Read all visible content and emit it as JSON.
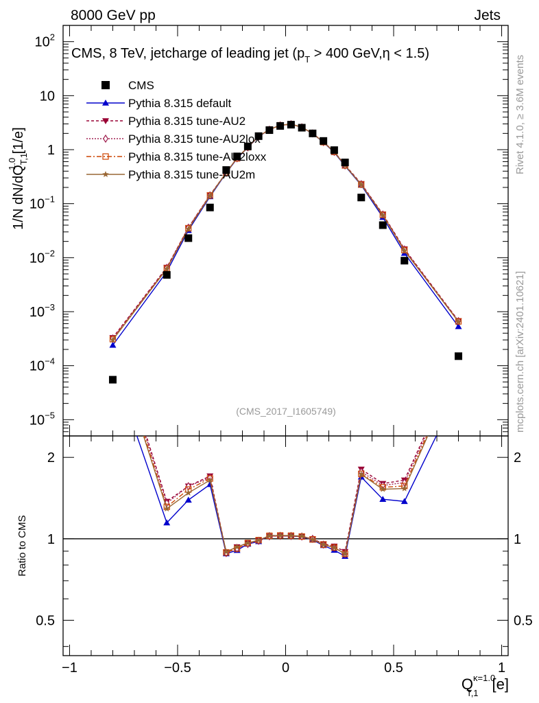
{
  "header": {
    "left": "8000 GeV pp",
    "right": "Jets"
  },
  "side_labels": {
    "rivet": "Rivet 4.1.0, ≥ 3.6M events",
    "mcplots": "mcplots.cern.ch [arXiv:2401.10621]"
  },
  "chart_data": {
    "type": "line",
    "title": "CMS, 8 TeV, jetcharge of leading jet (p_T > 400 GeV, η < 1.5)",
    "title_parts": {
      "a": "CMS, 8 TeV, jetcharge of leading jet (p",
      "sub": "T",
      "b": " > 400 GeV,η < 1.5)"
    },
    "analysis_id": "(CMS_2017_I1605749)",
    "xlabel": "Q_T,1^κ=1.0 [e]",
    "xlabel_parts": {
      "main": "Q",
      "sup": "κ=1.0",
      "sub": "T,1",
      "unit": "[e]"
    },
    "ylabel": "1/N dN/dQ_T,1^1.0 [1/e]",
    "ylabel_parts": {
      "a": "1/N dN/dQ",
      "sup": "1.0",
      "sub": "T,1",
      "b": " [1/e]"
    },
    "ratio_ylabel": "Ratio to CMS",
    "xlim": [
      -1.03,
      1.03
    ],
    "ylim": [
      5e-06,
      200
    ],
    "ratio_ylim": [
      0.37,
      2.4
    ],
    "x_ticks": [
      -1,
      -0.5,
      0,
      0.5,
      1
    ],
    "x_tick_labels": [
      "−1",
      "−0.5",
      "0",
      "0.5",
      "1"
    ],
    "y_ticks": [
      {
        "value": 100,
        "base": "10",
        "exp": "2"
      },
      {
        "value": 10,
        "base": "10",
        "exp": ""
      },
      {
        "value": 1,
        "base": "1",
        "exp": ""
      },
      {
        "value": 0.1,
        "base": "10",
        "exp": "−1"
      },
      {
        "value": 0.01,
        "base": "10",
        "exp": "−2"
      },
      {
        "value": 0.001,
        "base": "10",
        "exp": "−3"
      },
      {
        "value": 0.0001,
        "base": "10",
        "exp": "−4"
      },
      {
        "value": 1e-05,
        "base": "10",
        "exp": "−5"
      }
    ],
    "ratio_ticks": [
      {
        "value": 0.5,
        "label": "0.5"
      },
      {
        "value": 1,
        "label": "1"
      },
      {
        "value": 2,
        "label": "2"
      }
    ],
    "x": [
      -0.8,
      -0.55,
      -0.45,
      -0.35,
      -0.275,
      -0.225,
      -0.175,
      -0.125,
      -0.075,
      -0.025,
      0.025,
      0.075,
      0.125,
      0.175,
      0.225,
      0.275,
      0.35,
      0.45,
      0.55,
      0.8
    ],
    "data": {
      "name": "CMS",
      "color": "#000000",
      "values": [
        5.5e-05,
        0.0048,
        0.023,
        0.085,
        0.42,
        0.75,
        1.15,
        1.78,
        2.3,
        2.75,
        2.9,
        2.55,
        2.0,
        1.45,
        0.98,
        0.58,
        0.13,
        0.04,
        0.0088,
        0.00015
      ]
    },
    "series": [
      {
        "name": "Pythia 8.315 default",
        "color": "#0000cc",
        "dash": "",
        "marker": "triangle",
        "values": [
          0.00024,
          0.0055,
          0.032,
          0.135,
          0.37,
          0.68,
          1.1,
          1.74,
          2.37,
          2.82,
          2.97,
          2.6,
          1.98,
          1.37,
          0.89,
          0.5,
          0.22,
          0.056,
          0.0121,
          0.00053
        ]
      },
      {
        "name": "Pythia 8.315 tune-AU2",
        "color": "#990033",
        "dash": "4,3",
        "marker": "triangle-down",
        "values": [
          0.00033,
          0.0066,
          0.036,
          0.145,
          0.375,
          0.7,
          1.11,
          1.76,
          2.35,
          2.82,
          2.97,
          2.6,
          2.0,
          1.39,
          0.92,
          0.52,
          0.235,
          0.064,
          0.0145,
          0.00068
        ]
      },
      {
        "name": "Pythia 8.315 tune-AU2lox",
        "color": "#a02050",
        "dash": "2,2",
        "marker": "diamond",
        "values": [
          0.00032,
          0.0065,
          0.036,
          0.143,
          0.372,
          0.69,
          1.1,
          1.75,
          2.35,
          2.82,
          2.97,
          2.6,
          2.0,
          1.38,
          0.91,
          0.51,
          0.23,
          0.063,
          0.0142,
          0.00067
        ]
      },
      {
        "name": "Pythia 8.315 tune-AU2loxx",
        "color": "#cc4400",
        "dash": "7,3,2,3",
        "marker": "square",
        "values": [
          0.00031,
          0.0063,
          0.035,
          0.142,
          0.374,
          0.69,
          1.11,
          1.76,
          2.36,
          2.83,
          2.98,
          2.6,
          1.99,
          1.38,
          0.91,
          0.51,
          0.226,
          0.062,
          0.0138,
          0.00066
        ]
      },
      {
        "name": "Pythia 8.315 tune-AU2m",
        "color": "#996633",
        "dash": "",
        "marker": "star",
        "values": [
          0.0003,
          0.0062,
          0.034,
          0.14,
          0.376,
          0.7,
          1.11,
          1.76,
          2.36,
          2.83,
          2.98,
          2.61,
          1.99,
          1.38,
          0.91,
          0.51,
          0.225,
          0.061,
          0.0135,
          0.00065
        ]
      }
    ]
  }
}
